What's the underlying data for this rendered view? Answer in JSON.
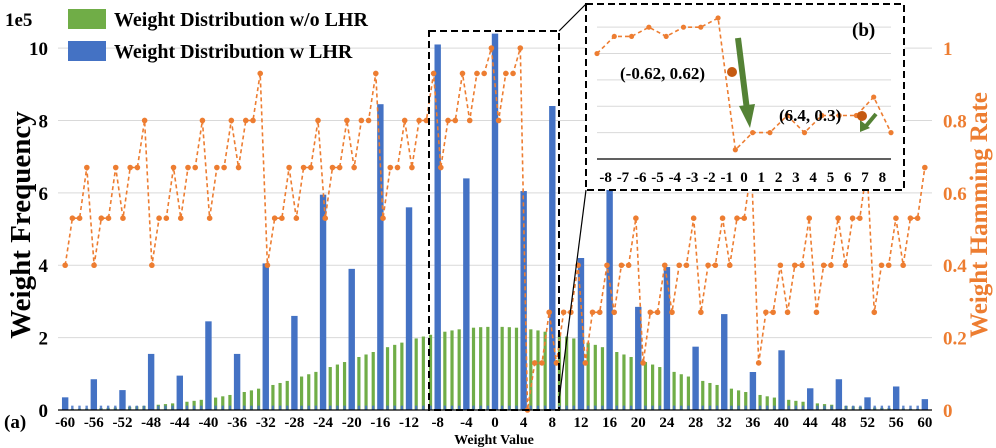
{
  "chart_data": {
    "type": "bar+line",
    "panel_label_main": "(a)",
    "panel_label_inset": "(b)",
    "left_axis": {
      "label": "Weight Frequency",
      "multiplier_label": "1e5",
      "ticks": [
        0,
        2,
        4,
        6,
        8,
        10
      ],
      "range": [
        0,
        10.5
      ]
    },
    "right_axis": {
      "label": "Weight Hamming Rate",
      "ticks": [
        "0",
        "0.2",
        "0.4",
        "0.6",
        "0.8",
        "1"
      ],
      "range": [
        0,
        1.05
      ]
    },
    "x_axis": {
      "label": "Weight Value",
      "range": [
        -61,
        61
      ],
      "ticks_left": [
        "-60",
        "-56",
        "-52",
        "-48",
        "-44",
        "-40",
        "-36",
        "-32",
        "-28",
        "-24",
        "-20",
        "-16",
        "-12"
      ],
      "ticks_inner": [
        "-8",
        "-4",
        "0",
        "4",
        "8"
      ],
      "ticks_right": [
        "12",
        "16",
        "20",
        "24",
        "28",
        "32",
        "36",
        "40",
        "44",
        "48",
        "52",
        "56",
        "60"
      ]
    },
    "legend": [
      {
        "name": "Weight Distribution w/o LHR",
        "color": "#70ad47"
      },
      {
        "name": "Weight Distribution w LHR",
        "color": "#4472c4"
      }
    ],
    "gaussian_series": {
      "name": "Weight Distribution w/o LHR",
      "peak": 2.3,
      "sigma": 20,
      "color": "#70ad47"
    },
    "lhr_series": {
      "name": "Weight Distribution w LHR",
      "color": "#4472c4",
      "points": [
        [
          -60,
          0.35
        ],
        [
          -56,
          0.85
        ],
        [
          -52,
          0.55
        ],
        [
          -48,
          1.55
        ],
        [
          -44,
          0.95
        ],
        [
          -40,
          2.45
        ],
        [
          -36,
          1.55
        ],
        [
          -32,
          4.05
        ],
        [
          -28,
          2.6
        ],
        [
          -24,
          5.95
        ],
        [
          -20,
          3.9
        ],
        [
          -16,
          8.45
        ],
        [
          -12,
          5.6
        ],
        [
          -8,
          10.1
        ],
        [
          -4,
          6.4
        ],
        [
          0,
          10.4
        ],
        [
          4,
          6.05
        ],
        [
          8,
          8.4
        ],
        [
          12,
          4.2
        ],
        [
          16,
          6.5
        ],
        [
          20,
          2.85
        ],
        [
          24,
          3.95
        ],
        [
          28,
          1.75
        ],
        [
          32,
          2.65
        ],
        [
          36,
          1.05
        ],
        [
          40,
          1.65
        ],
        [
          44,
          0.6
        ],
        [
          48,
          0.85
        ],
        [
          52,
          0.35
        ],
        [
          56,
          0.65
        ],
        [
          60,
          0.3
        ]
      ],
      "minor_value": 0.12
    },
    "hamming_series": {
      "name": "Weight Hamming Rate",
      "color": "#ed7d31",
      "values": [
        0.4,
        0.53,
        0.53,
        0.67,
        0.4,
        0.53,
        0.53,
        0.67,
        0.53,
        0.67,
        0.67,
        0.8,
        0.4,
        0.53,
        0.53,
        0.67,
        0.53,
        0.67,
        0.67,
        0.8,
        0.53,
        0.67,
        0.67,
        0.8,
        0.67,
        0.8,
        0.8,
        0.93,
        0.4,
        0.53,
        0.53,
        0.67,
        0.53,
        0.67,
        0.67,
        0.8,
        0.53,
        0.67,
        0.67,
        0.8,
        0.67,
        0.8,
        0.8,
        0.93,
        0.53,
        0.67,
        0.67,
        0.8,
        0.67,
        0.8,
        0.8,
        0.93,
        0.67,
        0.8,
        0.8,
        0.93,
        0.8,
        0.93,
        0.93,
        1.0,
        0.8,
        0.93,
        0.93,
        1.0,
        0.0,
        0.13,
        0.13,
        0.27,
        0.13,
        0.27,
        0.27,
        0.4,
        0.13,
        0.27,
        0.27,
        0.4,
        0.27,
        0.4,
        0.4,
        0.53,
        0.13,
        0.27,
        0.27,
        0.4,
        0.27,
        0.4,
        0.4,
        0.53,
        0.27,
        0.4,
        0.4,
        0.53,
        0.4,
        0.53,
        0.53,
        0.67,
        0.13,
        0.27,
        0.27,
        0.4,
        0.27,
        0.4,
        0.4,
        0.53,
        0.27,
        0.4,
        0.4,
        0.53,
        0.4,
        0.53,
        0.53,
        0.67,
        0.27,
        0.4,
        0.4,
        0.53,
        0.4,
        0.53,
        0.53,
        0.67
      ]
    },
    "inset": {
      "x_ticks": [
        "-8",
        "-7",
        "-6",
        "-5",
        "-4",
        "-3",
        "-2",
        "-1",
        "0",
        "1",
        "2",
        "3",
        "4",
        "5",
        "6",
        "7",
        "8"
      ],
      "values": [
        0.8,
        0.93,
        0.93,
        1.0,
        0.93,
        1.0,
        1.0,
        1.07,
        0.07,
        0.2,
        0.2,
        0.33,
        0.2,
        0.33,
        0.33,
        0.33,
        0.47,
        0.2
      ],
      "annotations": [
        {
          "text": "(-0.62, 0.62)",
          "x": -0.62,
          "y": 0.62
        },
        {
          "text": "(6.4, 0.3)",
          "x": 6.4,
          "y": 0.3
        }
      ]
    }
  }
}
